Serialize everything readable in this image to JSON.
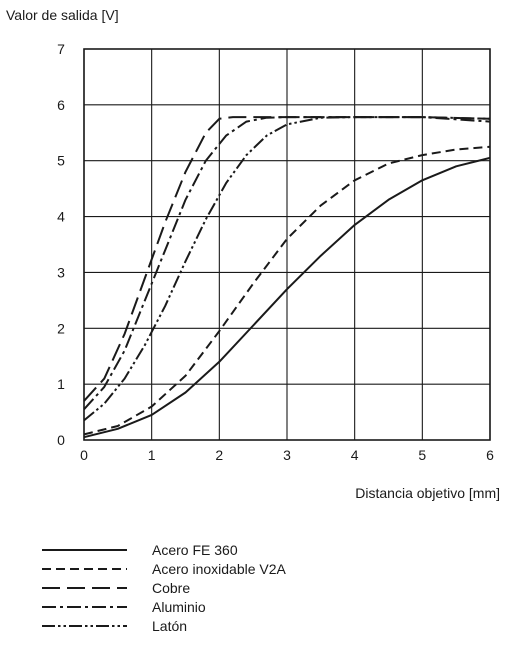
{
  "chart_data": {
    "type": "line",
    "ylabel": "Valor de salida [V]",
    "xlabel": "Distancia objetivo [mm]",
    "xlim": [
      0,
      6
    ],
    "ylim": [
      0,
      7
    ],
    "xticks": [
      "0",
      "1",
      "2",
      "3",
      "4",
      "5",
      "6"
    ],
    "yticks": [
      "0",
      "1",
      "2",
      "3",
      "4",
      "5",
      "6",
      "7"
    ],
    "grid": true,
    "legend_position": "bottom",
    "series": [
      {
        "name": "Acero FE 360",
        "style": "solid",
        "x": [
          0,
          0.5,
          1,
          1.5,
          2,
          2.5,
          3,
          3.5,
          4,
          4.5,
          5,
          5.5,
          6
        ],
        "y": [
          0.05,
          0.2,
          0.45,
          0.85,
          1.4,
          2.05,
          2.7,
          3.3,
          3.85,
          4.3,
          4.65,
          4.9,
          5.05
        ]
      },
      {
        "name": "Acero inoxidable V2A",
        "style": "dashed",
        "x": [
          0,
          0.5,
          1,
          1.5,
          2,
          2.5,
          3,
          3.5,
          4,
          4.5,
          5,
          5.5,
          6
        ],
        "y": [
          0.1,
          0.25,
          0.6,
          1.15,
          1.95,
          2.8,
          3.6,
          4.2,
          4.65,
          4.95,
          5.1,
          5.2,
          5.25
        ]
      },
      {
        "name": "Cobre",
        "style": "long-dash",
        "x": [
          0,
          0.3,
          0.6,
          0.9,
          1.2,
          1.5,
          1.8,
          2.0,
          2.2,
          2.5,
          3,
          4,
          5,
          6
        ],
        "y": [
          0.7,
          1.1,
          1.9,
          2.9,
          3.9,
          4.8,
          5.5,
          5.75,
          5.78,
          5.78,
          5.78,
          5.78,
          5.78,
          5.75
        ]
      },
      {
        "name": "Aluminio",
        "style": "dash-dot",
        "x": [
          0,
          0.3,
          0.6,
          0.9,
          1.2,
          1.5,
          1.8,
          2.1,
          2.4,
          2.7,
          3,
          4,
          5,
          6
        ],
        "y": [
          0.55,
          0.95,
          1.6,
          2.5,
          3.4,
          4.3,
          5.0,
          5.45,
          5.7,
          5.77,
          5.78,
          5.78,
          5.78,
          5.7
        ]
      },
      {
        "name": "Latón",
        "style": "dash-dot-dot",
        "x": [
          0,
          0.3,
          0.6,
          0.9,
          1.2,
          1.5,
          1.8,
          2.1,
          2.4,
          2.7,
          3,
          3.5,
          4,
          5,
          6
        ],
        "y": [
          0.35,
          0.65,
          1.1,
          1.7,
          2.4,
          3.2,
          3.95,
          4.6,
          5.1,
          5.45,
          5.65,
          5.77,
          5.78,
          5.78,
          5.75
        ]
      }
    ]
  }
}
